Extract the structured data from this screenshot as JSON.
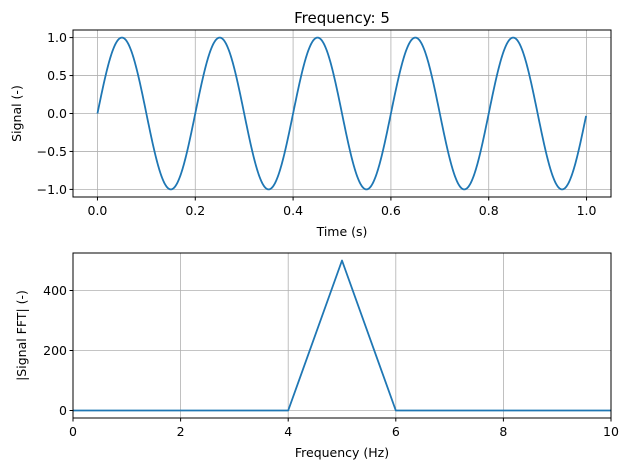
{
  "colors": {
    "series": "#1f77b4",
    "grid": "#b0b0b0"
  },
  "chart_data": [
    {
      "type": "line",
      "title": "Frequency: 5",
      "xlabel": "Time (s)",
      "ylabel": "Signal (-)",
      "xlim": [
        -0.05,
        1.05
      ],
      "ylim": [
        -1.1,
        1.1
      ],
      "xticks": [
        0.0,
        0.2,
        0.4,
        0.6,
        0.8,
        1.0
      ],
      "xtick_labels": [
        "0.0",
        "0.2",
        "0.4",
        "0.6",
        "0.8",
        "1.0"
      ],
      "yticks": [
        -1.0,
        -0.5,
        0.0,
        0.5,
        1.0
      ],
      "ytick_labels": [
        "−1.0",
        "−0.5",
        "0.0",
        "0.5",
        "1.0"
      ],
      "grid": true,
      "series": [
        {
          "function": "sin(2*pi*5*t)",
          "frequency": 5,
          "amplitude": 1,
          "x_start": 0.0,
          "x_end": 0.999,
          "points": 1000
        }
      ]
    },
    {
      "type": "line",
      "title": "",
      "xlabel": "Frequency (Hz)",
      "ylabel": "|Signal FFT| (-)",
      "xlim": [
        0,
        10
      ],
      "ylim": [
        -25,
        525
      ],
      "xticks": [
        0,
        2,
        4,
        6,
        8,
        10
      ],
      "xtick_labels": [
        "0",
        "2",
        "4",
        "6",
        "8",
        "10"
      ],
      "yticks": [
        0,
        200,
        400
      ],
      "ytick_labels": [
        "0",
        "200",
        "400"
      ],
      "grid": true,
      "series": [
        {
          "x": [
            0,
            1,
            2,
            3,
            4,
            5,
            6,
            7,
            8,
            9,
            10,
            11
          ],
          "y": [
            0,
            0,
            0,
            0,
            0,
            500,
            0,
            0,
            0,
            0,
            0,
            0
          ]
        }
      ]
    }
  ]
}
